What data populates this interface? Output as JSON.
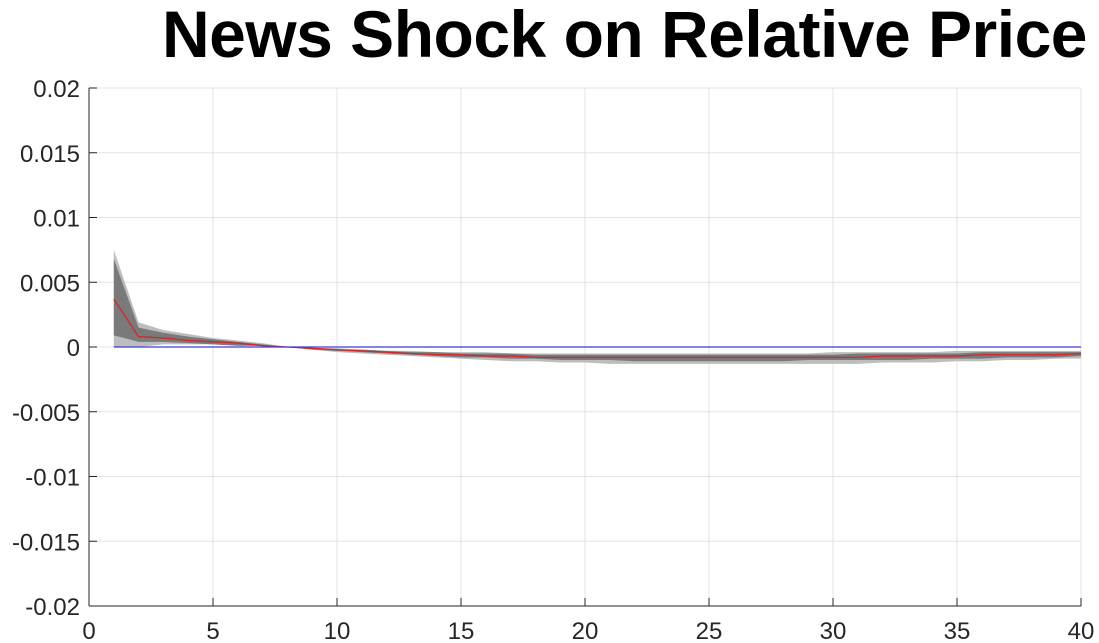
{
  "chart_data": {
    "type": "line",
    "title": "News Shock on Relative Price",
    "xlabel": "",
    "ylabel": "",
    "xlim": [
      0,
      40
    ],
    "ylim": [
      -0.02,
      0.02
    ],
    "grid": true,
    "x_ticks": [
      0,
      5,
      10,
      15,
      20,
      25,
      30,
      35,
      40
    ],
    "x_tick_labels": [
      "0",
      "5",
      "10",
      "15",
      "20",
      "25",
      "30",
      "35",
      "40"
    ],
    "y_ticks": [
      0.02,
      0.015,
      0.01,
      0.005,
      0,
      -0.005,
      -0.01,
      -0.015,
      -0.02
    ],
    "y_tick_labels": [
      "0.02",
      "0.015",
      "0.01",
      "0.005",
      "0",
      "-0.005",
      "-0.01",
      "-0.015",
      "-0.02"
    ],
    "x": [
      1,
      2,
      3,
      4,
      5,
      6,
      7,
      8,
      9,
      10,
      11,
      12,
      13,
      14,
      15,
      16,
      17,
      18,
      19,
      20,
      21,
      22,
      23,
      24,
      25,
      26,
      27,
      28,
      29,
      30,
      31,
      32,
      33,
      34,
      35,
      36,
      37,
      38,
      39,
      40
    ],
    "bands": [
      {
        "level": "outer",
        "color": "#bdbdbd",
        "lower": [
          0.0,
          0.0,
          0.0002,
          0.0002,
          0.0002,
          0.0001,
          0.0001,
          0.0,
          -0.0002,
          -0.0004,
          -0.0005,
          -0.0006,
          -0.0007,
          -0.0008,
          -0.0009,
          -0.001,
          -0.0011,
          -0.0011,
          -0.0012,
          -0.0012,
          -0.0013,
          -0.0013,
          -0.0013,
          -0.0013,
          -0.0013,
          -0.0013,
          -0.0013,
          -0.0013,
          -0.0013,
          -0.0013,
          -0.0013,
          -0.0012,
          -0.0012,
          -0.0012,
          -0.0011,
          -0.0011,
          -0.001,
          -0.001,
          -0.0009,
          -0.0009
        ],
        "upper": [
          0.0075,
          0.0019,
          0.0013,
          0.001,
          0.0007,
          0.0005,
          0.0003,
          0.0,
          -0.0001,
          -0.0001,
          -0.0002,
          -0.0003,
          -0.0003,
          -0.0004,
          -0.0004,
          -0.0004,
          -0.0005,
          -0.0005,
          -0.0005,
          -0.0005,
          -0.0005,
          -0.0005,
          -0.0005,
          -0.0005,
          -0.0005,
          -0.0005,
          -0.0005,
          -0.0005,
          -0.0005,
          -0.0004,
          -0.0004,
          -0.0004,
          -0.0004,
          -0.0004,
          -0.0003,
          -0.0003,
          -0.0003,
          -0.0003,
          -0.0003,
          -0.0003
        ]
      },
      {
        "level": "inner",
        "color": "#7a7a7a",
        "lower": [
          0.0009,
          0.0004,
          0.0004,
          0.0003,
          0.0002,
          0.0001,
          0.0001,
          0.0,
          -0.0002,
          -0.0003,
          -0.0004,
          -0.0005,
          -0.0006,
          -0.0007,
          -0.0008,
          -0.0008,
          -0.0009,
          -0.0009,
          -0.001,
          -0.001,
          -0.001,
          -0.0011,
          -0.0011,
          -0.0011,
          -0.0011,
          -0.0011,
          -0.0011,
          -0.0011,
          -0.001,
          -0.001,
          -0.001,
          -0.001,
          -0.001,
          -0.0009,
          -0.0009,
          -0.0009,
          -0.0008,
          -0.0008,
          -0.0008,
          -0.0007
        ],
        "upper": [
          0.0068,
          0.0015,
          0.0011,
          0.0008,
          0.0006,
          0.0004,
          0.0002,
          0.0,
          -0.0001,
          -0.0002,
          -0.0002,
          -0.0003,
          -0.0004,
          -0.0004,
          -0.0005,
          -0.0005,
          -0.0005,
          -0.0006,
          -0.0006,
          -0.0006,
          -0.0006,
          -0.0006,
          -0.0006,
          -0.0006,
          -0.0006,
          -0.0006,
          -0.0006,
          -0.0006,
          -0.0006,
          -0.0006,
          -0.0005,
          -0.0005,
          -0.0005,
          -0.0005,
          -0.0005,
          -0.0004,
          -0.0004,
          -0.0004,
          -0.0004,
          -0.0004
        ]
      }
    ],
    "series": [
      {
        "color": "#d62728",
        "values": [
          0.0037,
          0.0008,
          0.0007,
          0.0005,
          0.0004,
          0.0003,
          0.0001,
          0.0,
          -0.0001,
          -0.0002,
          -0.0003,
          -0.0004,
          -0.0005,
          -0.0006,
          -0.0006,
          -0.0007,
          -0.0007,
          -0.0008,
          -0.0008,
          -0.0008,
          -0.0008,
          -0.0008,
          -0.0008,
          -0.0008,
          -0.0008,
          -0.0008,
          -0.0008,
          -0.0008,
          -0.0008,
          -0.0008,
          -0.0008,
          -0.0007,
          -0.0007,
          -0.0007,
          -0.0007,
          -0.0006,
          -0.0006,
          -0.0006,
          -0.0006,
          -0.0005
        ]
      },
      {
        "color": "#3b3bd9",
        "values": [
          0,
          0,
          0,
          0,
          0,
          0,
          0,
          0,
          0,
          0,
          0,
          0,
          0,
          0,
          0,
          0,
          0,
          0,
          0,
          0,
          0,
          0,
          0,
          0,
          0,
          0,
          0,
          0,
          0,
          0,
          0,
          0,
          0,
          0,
          0,
          0,
          0,
          0,
          0,
          0
        ]
      }
    ],
    "colors": {
      "grid": "#e3e3e3",
      "axis": "#262626",
      "background": "#ffffff"
    }
  }
}
